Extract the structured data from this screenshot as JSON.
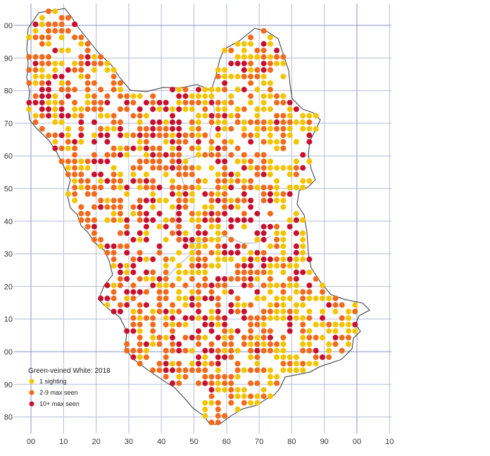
{
  "legend": {
    "title": "Green-veined White:  2018",
    "items": [
      {
        "label": "1 sighting",
        "color": "#f5c400"
      },
      {
        "label": "2-9 max seen",
        "color": "#f26a1b"
      },
      {
        "label": "10+ max seen",
        "color": "#c8102e"
      }
    ]
  },
  "axes": {
    "x_labels": [
      "00",
      "10",
      "20",
      "30",
      "40",
      "50",
      "60",
      "70",
      "80",
      "90",
      "00",
      "10"
    ],
    "y_labels": [
      "00",
      "90",
      "80",
      "70",
      "60",
      "50",
      "40",
      "30",
      "20",
      "10",
      "00",
      "90",
      "80"
    ]
  },
  "colors": {
    "grid": "#b4bcd8",
    "grid_major": "#8890c0",
    "boundary": "#333333",
    "inner_boundary": "#aaaaaa",
    "one_sighting": "#f5c400",
    "two_to_nine": "#f26a1b",
    "ten_plus": "#c8102e"
  }
}
